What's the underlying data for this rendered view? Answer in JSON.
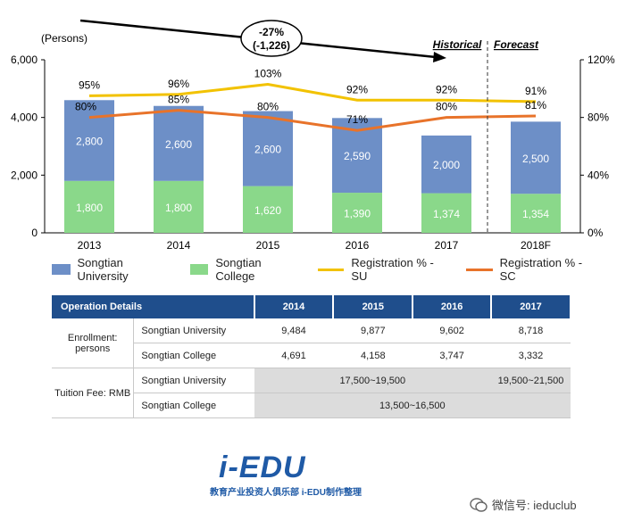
{
  "chart_data": {
    "type": "bar",
    "unit_label": "(Persons)",
    "categories": [
      "2013",
      "2014",
      "2015",
      "2016",
      "2017",
      "2018F"
    ],
    "series": [
      {
        "name": "Songtian College",
        "values": [
          1800,
          1800,
          1620,
          1390,
          1374,
          1354
        ],
        "color": "#8ad88a"
      },
      {
        "name": "Songtian University",
        "values": [
          2800,
          2600,
          2600,
          2590,
          2000,
          2500
        ],
        "color": "#6d8fc7"
      }
    ],
    "value_labels": {
      "college": [
        "1,800",
        "1,800",
        "1,620",
        "1,390",
        "1,374",
        "1,354"
      ],
      "university": [
        "2,800",
        "2,600",
        "2,600",
        "2,590",
        "2,000",
        "2,500"
      ]
    },
    "lines": [
      {
        "name": "Registration % - SU",
        "values": [
          95,
          96,
          103,
          92,
          92,
          91
        ],
        "labels": [
          "95%",
          "96%",
          "103%",
          "92%",
          "92%",
          "91%"
        ],
        "color": "#f2c200"
      },
      {
        "name": "Registration % - SC",
        "values": [
          80,
          85,
          80,
          71,
          80,
          81
        ],
        "labels": [
          "80%",
          "85%",
          "80%",
          "71%",
          "80%",
          "81%"
        ],
        "color": "#e8732a"
      }
    ],
    "ylim_left": [
      0,
      6000
    ],
    "yticks_left": [
      "0",
      "2,000",
      "4,000",
      "6,000"
    ],
    "yticks_left_values": [
      0,
      2000,
      4000,
      6000
    ],
    "ylim_right": [
      0,
      120
    ],
    "yticks_right": [
      "0%",
      "40%",
      "80%",
      "120%"
    ],
    "yticks_right_values": [
      0,
      40,
      80,
      120
    ],
    "annotation": {
      "line1": "-27%",
      "line2": "(-1,226)"
    },
    "period_labels": {
      "historical": "Historical",
      "forecast": "Forecast"
    },
    "legend": [
      "Songtian University",
      "Songtian College",
      "Registration % - SU",
      "Registration % - SC"
    ]
  },
  "table": {
    "header": [
      "Operation Details",
      "2014",
      "2015",
      "2016",
      "2017"
    ],
    "enrollment_label": "Enrollment: persons",
    "tuition_label": "Tuition Fee: RMB",
    "rows": {
      "enroll_su": {
        "name": "Songtian University",
        "values": [
          "9,484",
          "9,877",
          "9,602",
          "8,718"
        ]
      },
      "enroll_sc": {
        "name": "Songtian College",
        "values": [
          "4,691",
          "4,158",
          "3,747",
          "3,332"
        ]
      },
      "fee_su": {
        "name": "Songtian University",
        "span_value": "17,500~19,500",
        "last_value": "19,500~21,500"
      },
      "fee_sc": {
        "name": "Songtian College",
        "span_value": "13,500~16,500"
      }
    }
  },
  "footer": {
    "logo_main": "i-EDU",
    "logo_sub": "教育产业投资人俱乐部  i-EDU制作整理",
    "wechat": "微信号: ieduclub"
  }
}
